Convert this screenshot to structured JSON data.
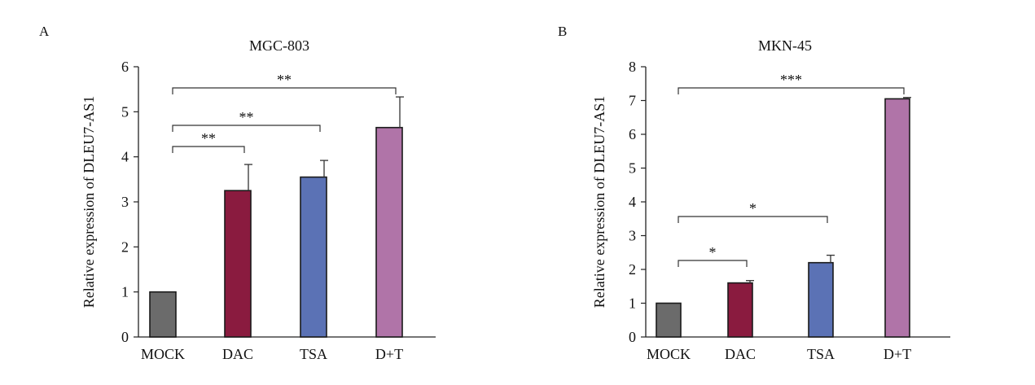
{
  "colors": {
    "mock": "#6b6b6b",
    "dac": "#8a1b3f",
    "tsa": "#5b72b5",
    "dt": "#b074a8",
    "axis": "#222222"
  },
  "chart_data": [
    {
      "type": "bar",
      "panel_label": "A",
      "title": "MGC-803",
      "ylabel": "Relative expression of DLEU7-AS1",
      "xlabel": "",
      "categories": [
        "MOCK",
        "DAC",
        "TSA",
        "D+T"
      ],
      "values": [
        1.0,
        3.25,
        3.55,
        4.65
      ],
      "errors": [
        0.02,
        0.58,
        0.37,
        0.68
      ],
      "ylim": [
        0,
        6
      ],
      "yticks": [
        "0",
        "1",
        "2",
        "3",
        "4",
        "5",
        "6"
      ],
      "grid": false,
      "legend": "none",
      "significance": [
        {
          "from": 0,
          "to": 1,
          "label": "**"
        },
        {
          "from": 0,
          "to": 2,
          "label": "**"
        },
        {
          "from": 0,
          "to": 3,
          "label": "**"
        }
      ]
    },
    {
      "type": "bar",
      "panel_label": "B",
      "title": "MKN-45",
      "ylabel": "Relative expression of DLEU7-AS1",
      "xlabel": "",
      "categories": [
        "MOCK",
        "DAC",
        "TSA",
        "D+T"
      ],
      "values": [
        1.0,
        1.6,
        2.2,
        7.05
      ],
      "errors": [
        0.02,
        0.07,
        0.22,
        0.04
      ],
      "ylim": [
        0,
        8
      ],
      "yticks": [
        "0",
        "1",
        "2",
        "3",
        "4",
        "5",
        "6",
        "7",
        "8"
      ],
      "grid": false,
      "legend": "none",
      "significance": [
        {
          "from": 0,
          "to": 1,
          "label": "*"
        },
        {
          "from": 0,
          "to": 2,
          "label": "*"
        },
        {
          "from": 0,
          "to": 3,
          "label": "***"
        }
      ]
    }
  ]
}
